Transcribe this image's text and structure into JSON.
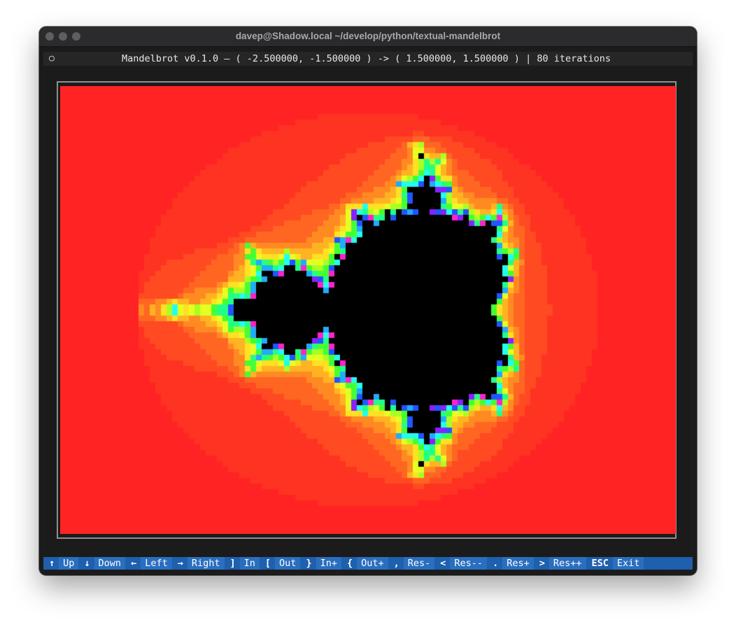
{
  "window": {
    "title": "davep@Shadow.local ~/develop/python/textual-mandelbrot"
  },
  "header": {
    "icon": "○",
    "text": "Mandelbrot v0.1.0 – ( -2.500000, -1.500000 ) -> ( 1.500000, 1.500000 ) | 80 iterations"
  },
  "plot": {
    "x_min": -2.5,
    "x_max": 1.5,
    "y_min": -1.5,
    "y_max": 1.5,
    "max_iterations": 80,
    "interior_color": "#000000",
    "background_color": "#ff2323"
  },
  "footer": {
    "bindings": [
      {
        "key": "↑",
        "label": "Up"
      },
      {
        "key": "↓",
        "label": "Down"
      },
      {
        "key": "←",
        "label": "Left"
      },
      {
        "key": "→",
        "label": "Right"
      },
      {
        "key": "]",
        "label": "In"
      },
      {
        "key": "[",
        "label": "Out"
      },
      {
        "key": "}",
        "label": "In+"
      },
      {
        "key": "{",
        "label": "Out+"
      },
      {
        "key": ",",
        "label": "Res-"
      },
      {
        "key": "<",
        "label": "Res--"
      },
      {
        "key": ".",
        "label": "Res+"
      },
      {
        "key": ">",
        "label": "Res++"
      },
      {
        "key": "ESC",
        "label": "Exit"
      }
    ]
  },
  "colors": {
    "footer_bg": "#1e5fae",
    "terminal_bg": "#1b1b1b"
  }
}
